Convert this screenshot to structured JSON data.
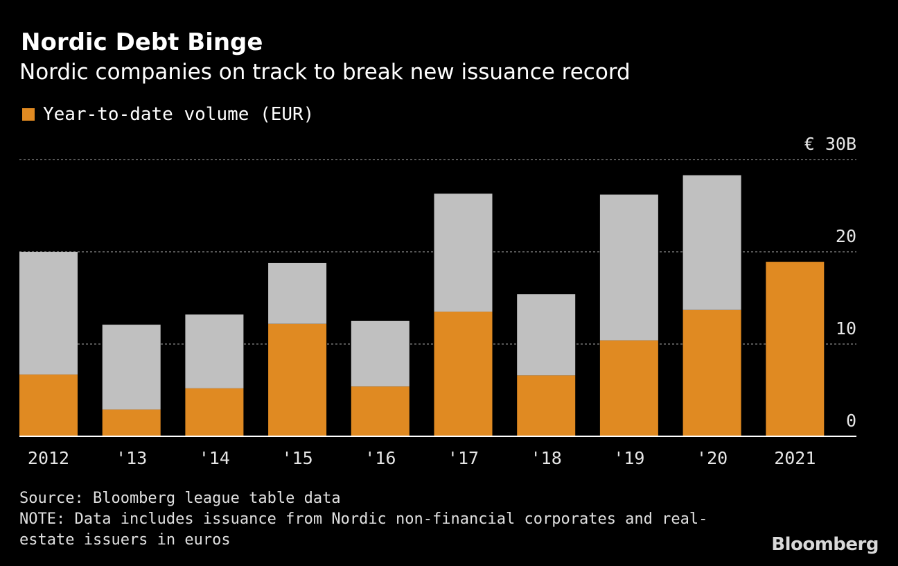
{
  "header": {
    "title": "Nordic Debt Binge",
    "subtitle": "Nordic companies on track to break new issuance record"
  },
  "legend": {
    "label": "Year-to-date volume (EUR)",
    "color": "#e08a22"
  },
  "footer": {
    "source": "Source: Bloomberg league table data",
    "note": "NOTE: Data includes issuance from Nordic non-financial corporates and real-\nestate issuers in euros",
    "brand": "Bloomberg"
  },
  "chart_data": {
    "type": "bar",
    "stacked": true,
    "categories": [
      "2012",
      "'13",
      "'14",
      "'15",
      "'16",
      "'17",
      "'18",
      "'19",
      "'20",
      "2021"
    ],
    "series": [
      {
        "name": "Year-to-date volume (EUR)",
        "color": "#e08a22",
        "values": [
          6.7,
          2.9,
          5.2,
          12.2,
          5.4,
          13.5,
          6.6,
          10.4,
          13.7,
          18.9
        ]
      },
      {
        "color": "#c0c0c0",
        "values": [
          13.3,
          9.2,
          8.0,
          6.6,
          7.1,
          12.8,
          8.8,
          15.8,
          14.6,
          0
        ]
      }
    ],
    "yaxis": {
      "ticks": [
        0,
        10,
        20,
        30
      ],
      "tick_labels": [
        "0",
        "10",
        "20",
        "€ 30B"
      ],
      "ylim": [
        0,
        30
      ],
      "position": "right",
      "grid": true
    }
  }
}
